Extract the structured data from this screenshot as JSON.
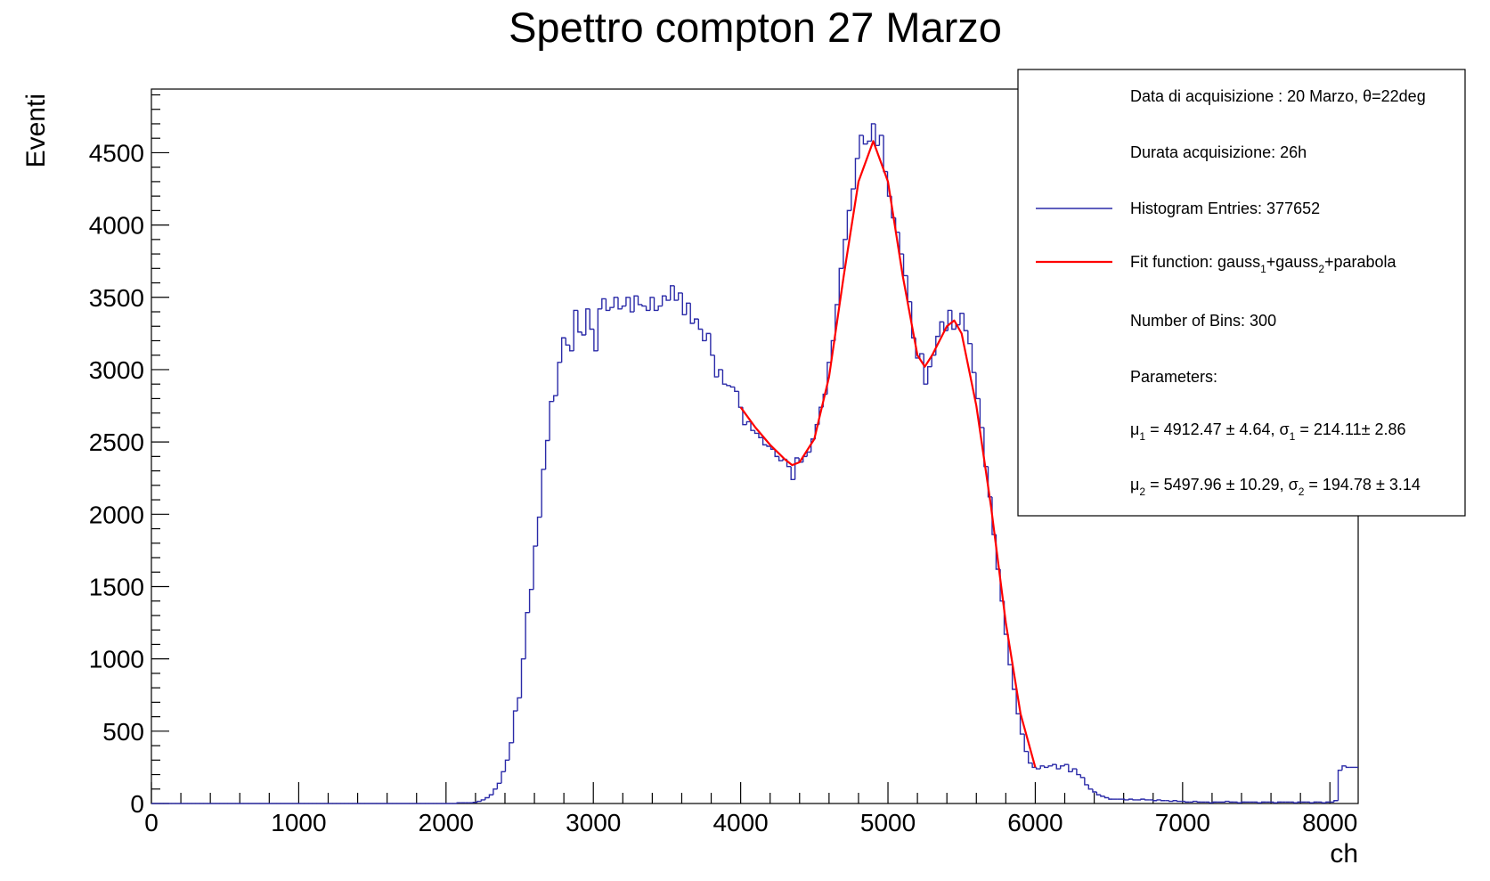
{
  "chart_data": {
    "type": "histogram",
    "title": "Spettro compton 27 Marzo",
    "x_label": "ch",
    "y_label": "Eventi",
    "xlim": [
      0,
      8192
    ],
    "ylim": [
      0,
      4940
    ],
    "xticks": [
      0,
      1000,
      2000,
      3000,
      4000,
      5000,
      6000,
      7000,
      8000
    ],
    "yticks": [
      0,
      500,
      1000,
      1500,
      2000,
      2500,
      3000,
      3500,
      4000,
      4500
    ],
    "xminor": 5,
    "yminor": 5,
    "bins": [
      0,
      27,
      55,
      82,
      109,
      137,
      164,
      191,
      218,
      246,
      273,
      300,
      328,
      355,
      382,
      410,
      437,
      464,
      492,
      519,
      546,
      573,
      601,
      628,
      655,
      683,
      710,
      737,
      765,
      792,
      819,
      847,
      874,
      901,
      928,
      956,
      983,
      1010,
      1038,
      1065,
      1092,
      1120,
      1147,
      1174,
      1201,
      1229,
      1256,
      1283,
      1311,
      1338,
      1365,
      1393,
      1420,
      1447,
      1475,
      1502,
      1529,
      1556,
      1584,
      1611,
      1638,
      1666,
      1693,
      1720,
      1748,
      1775,
      1802,
      1830,
      1857,
      1884,
      1911,
      1939,
      1966,
      1993,
      2021,
      2048,
      2075,
      2103,
      2130,
      2157,
      2185,
      2212,
      2239,
      2266,
      2294,
      2321,
      2348,
      2376,
      2403,
      2430,
      2458,
      2485,
      2512,
      2540,
      2567,
      2594,
      2621,
      2649,
      2676,
      2703,
      2731,
      2758,
      2785,
      2813,
      2840,
      2867,
      2895,
      2922,
      2949,
      2976,
      3004,
      3031,
      3058,
      3086,
      3113,
      3140,
      3168,
      3195,
      3222,
      3250,
      3277,
      3304,
      3331,
      3359,
      3386,
      3413,
      3441,
      3468,
      3495,
      3523,
      3550,
      3577,
      3605,
      3632,
      3659,
      3686,
      3714,
      3741,
      3768,
      3796,
      3823,
      3850,
      3878,
      3905,
      3932,
      3959,
      3987,
      4014,
      4041,
      4069,
      4096,
      4123,
      4151,
      4178,
      4205,
      4233,
      4260,
      4287,
      4314,
      4342,
      4369,
      4396,
      4424,
      4451,
      4478,
      4506,
      4533,
      4560,
      4588,
      4615,
      4642,
      4669,
      4697,
      4724,
      4751,
      4779,
      4806,
      4833,
      4861,
      4888,
      4915,
      4942,
      4970,
      4997,
      5024,
      5052,
      5079,
      5106,
      5134,
      5161,
      5188,
      5216,
      5243,
      5270,
      5297,
      5325,
      5352,
      5379,
      5407,
      5434,
      5461,
      5489,
      5516,
      5543,
      5571,
      5598,
      5625,
      5652,
      5680,
      5707,
      5734,
      5762,
      5789,
      5816,
      5844,
      5871,
      5898,
      5926,
      5953,
      5980,
      6007,
      6035,
      6062,
      6089,
      6117,
      6144,
      6171,
      6199,
      6226,
      6253,
      6281,
      6308,
      6335,
      6362,
      6390,
      6417,
      6444,
      6472,
      6499,
      6526,
      6554,
      6581,
      6608,
      6636,
      6663,
      6690,
      6717,
      6745,
      6772,
      6799,
      6827,
      6854,
      6881,
      6909,
      6936,
      6963,
      6991,
      7018,
      7045,
      7072,
      7100,
      7127,
      7154,
      7182,
      7209,
      7236,
      7264,
      7291,
      7318,
      7346,
      7373,
      7400,
      7427,
      7455,
      7482,
      7509,
      7537,
      7564,
      7591,
      7619,
      7646,
      7673,
      7701,
      7728,
      7755,
      7782,
      7810,
      7837,
      7864,
      7892,
      7919,
      7946,
      7974,
      8001,
      8028,
      8056,
      8083,
      8110,
      8137,
      8165,
      8192
    ],
    "series": [
      {
        "name": "Histogram Entries: 377652",
        "color": "#2a2aa8",
        "values": [
          0,
          0,
          0,
          0,
          0,
          0,
          0,
          0,
          0,
          0,
          0,
          0,
          0,
          0,
          0,
          0,
          0,
          0,
          0,
          0,
          0,
          0,
          0,
          0,
          0,
          0,
          0,
          0,
          0,
          0,
          0,
          0,
          0,
          0,
          0,
          0,
          0,
          0,
          0,
          0,
          0,
          0,
          0,
          0,
          0,
          0,
          0,
          0,
          0,
          0,
          0,
          0,
          0,
          0,
          0,
          0,
          0,
          0,
          0,
          0,
          0,
          0,
          0,
          0,
          0,
          0,
          0,
          0,
          0,
          0,
          0,
          0,
          0,
          0,
          0,
          0,
          5,
          5,
          5,
          5,
          8,
          15,
          25,
          40,
          60,
          100,
          140,
          220,
          300,
          420,
          640,
          730,
          1000,
          1320,
          1480,
          1780,
          1980,
          2310,
          2510,
          2780,
          2820,
          3050,
          3220,
          3170,
          3130,
          3410,
          3260,
          3240,
          3420,
          3280,
          3130,
          3420,
          3490,
          3410,
          3430,
          3500,
          3420,
          3440,
          3500,
          3400,
          3510,
          3450,
          3440,
          3410,
          3500,
          3410,
          3440,
          3510,
          3480,
          3580,
          3480,
          3530,
          3380,
          3460,
          3320,
          3350,
          3280,
          3200,
          3250,
          3100,
          2950,
          3000,
          2900,
          2890,
          2880,
          2850,
          2740,
          2620,
          2640,
          2580,
          2560,
          2530,
          2480,
          2470,
          2450,
          2400,
          2370,
          2380,
          2330,
          2240,
          2390,
          2360,
          2400,
          2430,
          2520,
          2620,
          2740,
          2830,
          3050,
          3200,
          3450,
          3700,
          3900,
          4100,
          4250,
          4460,
          4620,
          4560,
          4580,
          4700,
          4550,
          4620,
          4370,
          4200,
          4050,
          3950,
          3800,
          3650,
          3470,
          3220,
          3080,
          3110,
          2900,
          3020,
          3100,
          3230,
          3330,
          3270,
          3410,
          3280,
          3310,
          3390,
          3270,
          3180,
          2980,
          2800,
          2600,
          2330,
          2120,
          1860,
          1620,
          1400,
          1170,
          960,
          790,
          620,
          480,
          360,
          280,
          250,
          240,
          260,
          250,
          260,
          270,
          240,
          260,
          270,
          220,
          240,
          200,
          180,
          130,
          100,
          80,
          60,
          50,
          40,
          30,
          30,
          30,
          30,
          25,
          30,
          25,
          25,
          30,
          25,
          25,
          20,
          25,
          20,
          20,
          15,
          20,
          15,
          15,
          10,
          10,
          15,
          10,
          10,
          10,
          5,
          10,
          10,
          10,
          15,
          10,
          10,
          5,
          10,
          10,
          10,
          10,
          5,
          10,
          10,
          10,
          5,
          10,
          10,
          10,
          10,
          5,
          10,
          10,
          10,
          5,
          10,
          10,
          5,
          10,
          10,
          20,
          230,
          260,
          250,
          250,
          250
        ]
      },
      {
        "name": [
          "Fit function: gauss",
          "1",
          "+gauss",
          "2",
          "+parabola"
        ],
        "color": "#ff0000",
        "x": [
          4000,
          4100,
          4200,
          4300,
          4350,
          4400,
          4500,
          4600,
          4700,
          4800,
          4900,
          5000,
          5100,
          5200,
          5250,
          5300,
          5400,
          5450,
          5500,
          5600,
          5700,
          5800,
          5900,
          6000
        ],
        "values": [
          2740,
          2600,
          2480,
          2380,
          2340,
          2360,
          2520,
          2950,
          3650,
          4300,
          4580,
          4300,
          3650,
          3100,
          3020,
          3100,
          3300,
          3340,
          3250,
          2750,
          2050,
          1250,
          620,
          250
        ]
      }
    ],
    "annotations": [
      [
        "Data di acquisizione : 20 Marzo, θ=22deg"
      ],
      [
        "Durata acquisizione: 26h"
      ],
      [
        "Number of Bins: 300"
      ],
      [
        "Parameters:"
      ],
      [
        "μ",
        "1",
        " = 4912.47 ± 4.64, σ",
        "1",
        " = 214.11± 2.86"
      ],
      [
        "μ",
        "2",
        " = 5497.96 ± 10.29, σ",
        "2",
        " = 194.78 ± 3.14"
      ]
    ]
  }
}
